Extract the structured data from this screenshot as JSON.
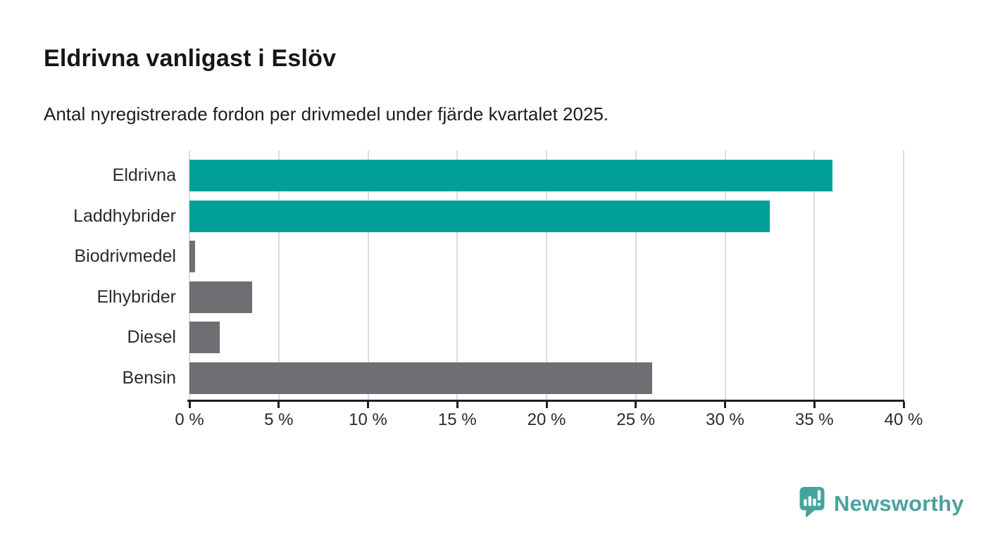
{
  "chart_data": {
    "type": "bar",
    "orientation": "horizontal",
    "title": "Eldrivna vanligast i Eslöv",
    "subtitle": "Antal nyregistrerade fordon per drivmedel under fjärde kvartalet 2025.",
    "categories": [
      "Eldrivna",
      "Laddhybrider",
      "Biodrivmedel",
      "Elhybrider",
      "Diesel",
      "Bensin"
    ],
    "values": [
      36.0,
      32.5,
      0.3,
      3.5,
      1.7,
      25.9
    ],
    "colors": [
      "#00A096",
      "#00A096",
      "#6E6E73",
      "#6E6E73",
      "#6E6E73",
      "#6E6E73"
    ],
    "xlabel": "",
    "ylabel": "",
    "xlim": [
      0,
      40
    ],
    "xticks": [
      0,
      5,
      10,
      15,
      20,
      25,
      30,
      35,
      40
    ],
    "tick_suffix": " %",
    "grid": true,
    "legend": "none",
    "accent_color": "#00A096",
    "muted_color": "#6E6E73"
  },
  "branding": {
    "text": "Newsworthy",
    "text_color": "#4BA29D",
    "mark_color": "#45A39D"
  }
}
